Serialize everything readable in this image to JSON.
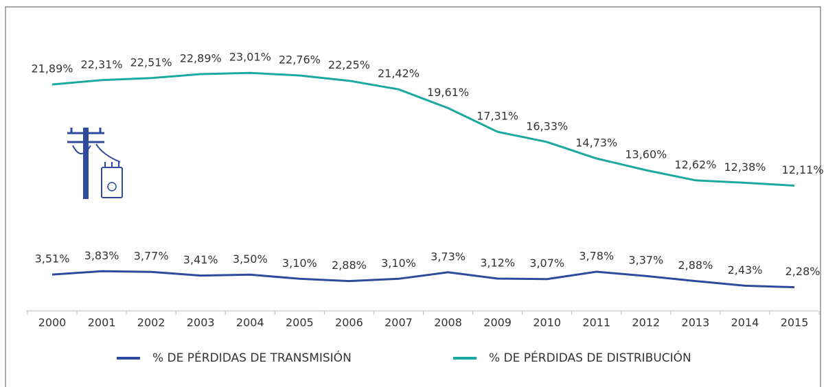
{
  "chart_data": {
    "type": "line",
    "categories": [
      "2000",
      "2001",
      "2002",
      "2003",
      "2004",
      "2005",
      "2006",
      "2007",
      "2008",
      "2009",
      "2010",
      "2011",
      "2012",
      "2013",
      "2014",
      "2015"
    ],
    "series": [
      {
        "name": "% DE PÉRDIDAS DE TRANSMISIÓN",
        "color": "#2e4a9e",
        "values": [
          3.51,
          3.83,
          3.77,
          3.41,
          3.5,
          3.1,
          2.88,
          3.1,
          3.73,
          3.12,
          3.07,
          3.78,
          3.37,
          2.88,
          2.43,
          2.28
        ],
        "value_labels": [
          "3,51%",
          "3,83%",
          "3,77%",
          "3,41%",
          "3,50%",
          "3,10%",
          "2,88%",
          "3,10%",
          "3,73%",
          "3,12%",
          "3,07%",
          "3,78%",
          "3,37%",
          "2,88%",
          "2,43%",
          "2,28%"
        ]
      },
      {
        "name": "% DE PÉRDIDAS DE DISTRIBUCIÓN",
        "color": "#1aa89f",
        "values": [
          21.89,
          22.31,
          22.51,
          22.89,
          23.01,
          22.76,
          22.25,
          21.42,
          19.61,
          17.31,
          16.33,
          14.73,
          13.6,
          12.62,
          12.38,
          12.11
        ],
        "value_labels": [
          "21,89%",
          "22,31%",
          "22,51%",
          "22,89%",
          "23,01%",
          "22,76%",
          "22,25%",
          "21,42%",
          "19,61%",
          "17,31%",
          "16,33%",
          "14,73%",
          "13,60%",
          "12,62%",
          "12,38%",
          "12,11%"
        ]
      }
    ]
  }
}
